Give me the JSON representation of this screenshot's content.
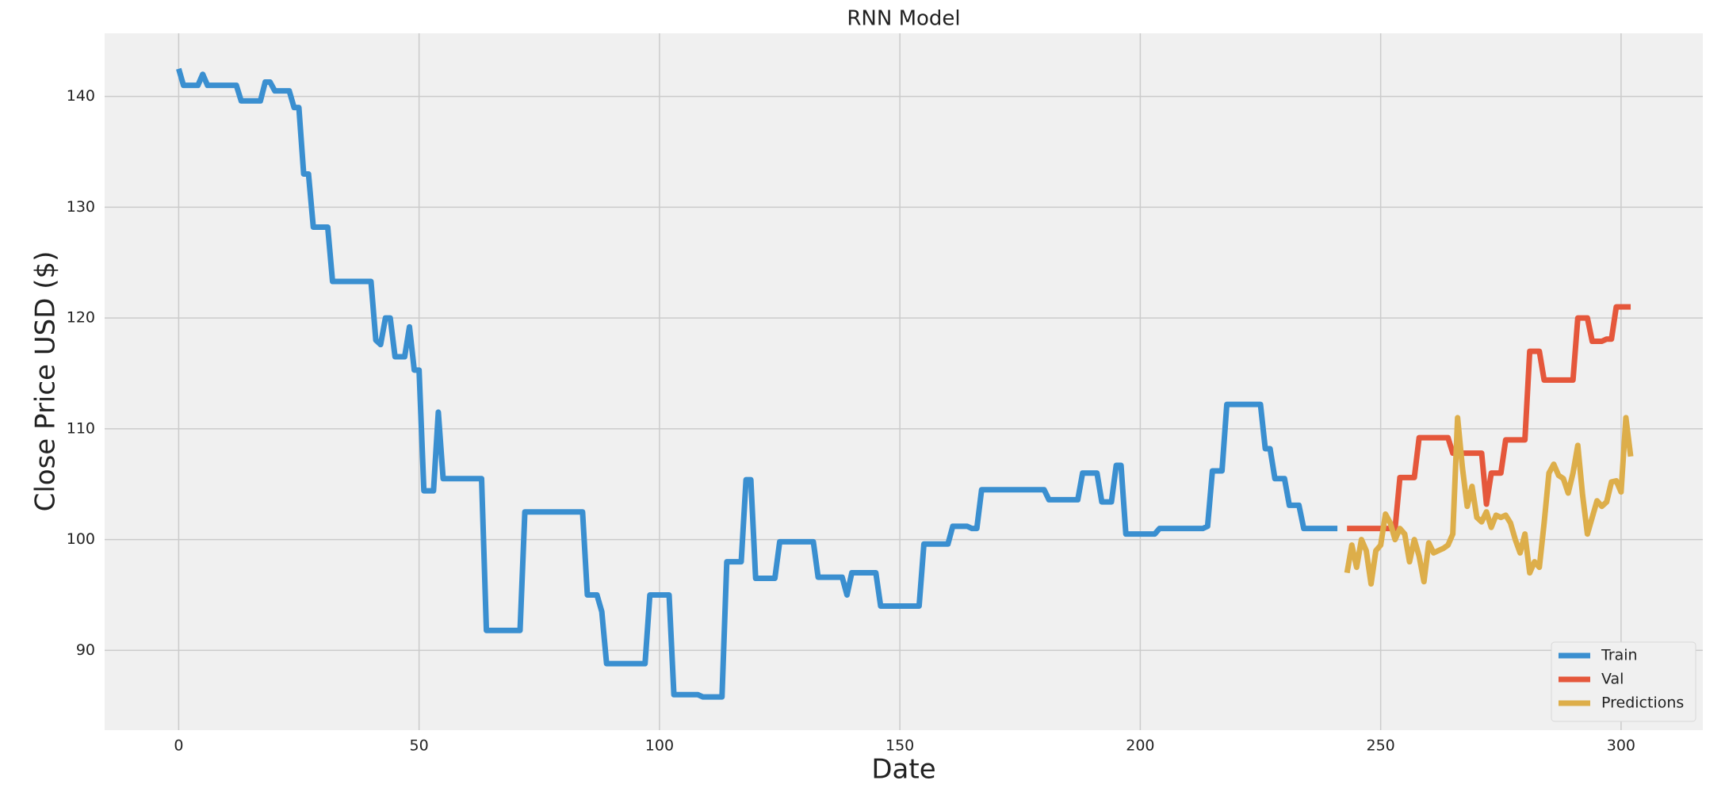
{
  "chart_data": {
    "type": "line",
    "title": "RNN Model",
    "x_label": "Date",
    "y_label": "Close Price USD ($)",
    "xlim": [
      -15.4,
      317
    ],
    "ylim": [
      82.8,
      145.7
    ],
    "xticks": [
      0,
      50,
      100,
      150,
      200,
      250,
      300
    ],
    "yticks": [
      90,
      100,
      110,
      120,
      130,
      140
    ],
    "grid": true,
    "legend": "lower right",
    "series": [
      {
        "name": "Train",
        "color": "#3a8fd0",
        "x": [
          0,
          1,
          2,
          3,
          4,
          5,
          6,
          7,
          8,
          9,
          10,
          11,
          12,
          13,
          14,
          15,
          16,
          17,
          18,
          19,
          20,
          21,
          22,
          23,
          24,
          25,
          26,
          27,
          28,
          29,
          30,
          31,
          32,
          33,
          34,
          35,
          36,
          37,
          38,
          39,
          40,
          41,
          42,
          43,
          44,
          45,
          46,
          47,
          48,
          49,
          50,
          51,
          52,
          53,
          54,
          55,
          56,
          57,
          58,
          59,
          60,
          61,
          62,
          63,
          64,
          65,
          66,
          67,
          68,
          69,
          70,
          71,
          72,
          73,
          74,
          75,
          76,
          77,
          78,
          79,
          80,
          81,
          82,
          83,
          84,
          85,
          86,
          87,
          88,
          89,
          90,
          91,
          92,
          93,
          94,
          95,
          96,
          97,
          98,
          99,
          100,
          101,
          102,
          103,
          104,
          105,
          106,
          107,
          108,
          109,
          110,
          111,
          112,
          113,
          114,
          115,
          116,
          117,
          118,
          119,
          120,
          121,
          122,
          123,
          124,
          125,
          126,
          127,
          128,
          129,
          130,
          131,
          132,
          133,
          134,
          135,
          136,
          137,
          138,
          139,
          140,
          141,
          142,
          143,
          144,
          145,
          146,
          147,
          148,
          149,
          150,
          151,
          152,
          153,
          154,
          155,
          156,
          157,
          158,
          159,
          160,
          161,
          162,
          163,
          164,
          165,
          166,
          167,
          168,
          169,
          170,
          171,
          172,
          173,
          174,
          175,
          176,
          177,
          178,
          179,
          180,
          181,
          182,
          183,
          184,
          185,
          186,
          187,
          188,
          189,
          190,
          191,
          192,
          193,
          194,
          195,
          196,
          197,
          198,
          199,
          200,
          201,
          202,
          203,
          204,
          205,
          206,
          207,
          208,
          209,
          210,
          211,
          212,
          213,
          214,
          215,
          216,
          217,
          218,
          219,
          220,
          221,
          222,
          223,
          224,
          225,
          226,
          227,
          228,
          229,
          230,
          231,
          232,
          233,
          234,
          235,
          236,
          237,
          238,
          239,
          240,
          241
        ],
        "values": [
          142.5,
          141,
          141,
          141,
          141,
          142,
          141,
          141,
          141,
          141,
          141,
          141,
          141,
          139.6,
          139.6,
          139.6,
          139.6,
          139.6,
          141.3,
          141.3,
          140.5,
          140.5,
          140.5,
          140.5,
          139,
          139,
          133,
          133,
          128.2,
          128.2,
          128.2,
          128.2,
          123.3,
          123.3,
          123.3,
          123.3,
          123.3,
          123.3,
          123.3,
          123.3,
          123.3,
          118,
          117.6,
          120,
          120,
          116.5,
          116.5,
          116.5,
          119.2,
          115.3,
          115.3,
          104.4,
          104.4,
          104.4,
          111.5,
          105.5,
          105.5,
          105.5,
          105.5,
          105.5,
          105.5,
          105.5,
          105.5,
          105.5,
          91.8,
          91.8,
          91.8,
          91.8,
          91.8,
          91.8,
          91.8,
          91.8,
          102.5,
          102.5,
          102.5,
          102.5,
          102.5,
          102.5,
          102.5,
          102.5,
          102.5,
          102.5,
          102.5,
          102.5,
          102.5,
          95,
          95,
          95,
          93.5,
          88.8,
          88.8,
          88.8,
          88.8,
          88.8,
          88.8,
          88.8,
          88.8,
          88.8,
          95,
          95,
          95,
          95,
          95,
          86,
          86,
          86,
          86,
          86,
          86,
          85.8,
          85.8,
          85.8,
          85.8,
          85.8,
          98,
          98,
          98,
          98,
          105.4,
          105.4,
          96.5,
          96.5,
          96.5,
          96.5,
          96.5,
          99.8,
          99.8,
          99.8,
          99.8,
          99.8,
          99.8,
          99.8,
          99.8,
          96.6,
          96.6,
          96.6,
          96.6,
          96.6,
          96.6,
          95,
          97,
          97,
          97,
          97,
          97,
          97,
          94,
          94,
          94,
          94,
          94,
          94,
          94,
          94,
          94,
          99.6,
          99.6,
          99.6,
          99.6,
          99.6,
          99.6,
          101.2,
          101.2,
          101.2,
          101.2,
          101,
          101,
          104.5,
          104.5,
          104.5,
          104.5,
          104.5,
          104.5,
          104.5,
          104.5,
          104.5,
          104.5,
          104.5,
          104.5,
          104.5,
          104.5,
          103.6,
          103.6,
          103.6,
          103.6,
          103.6,
          103.6,
          103.6,
          106,
          106,
          106,
          106,
          103.4,
          103.4,
          103.4,
          106.7,
          106.7,
          100.5,
          100.5,
          100.5,
          100.5,
          100.5,
          100.5,
          100.5,
          101,
          101,
          101,
          101,
          101,
          101,
          101,
          101,
          101,
          101,
          101.2,
          106.2,
          106.2,
          106.2,
          112.2,
          112.2,
          112.2,
          112.2,
          112.2,
          112.2,
          112.2,
          112.2,
          108.2,
          108.2,
          105.5,
          105.5,
          105.5,
          103.1,
          103.1,
          103.1,
          101,
          101,
          101,
          101,
          101,
          101,
          101,
          101
        ]
      },
      {
        "name": "Val",
        "color": "#e5573b",
        "x": [
          243,
          244,
          245,
          246,
          247,
          248,
          249,
          250,
          251,
          252,
          253,
          254,
          255,
          256,
          257,
          258,
          259,
          260,
          261,
          262,
          263,
          264,
          265,
          266,
          267,
          268,
          269,
          270,
          271,
          272,
          273,
          274,
          275,
          276,
          277,
          278,
          279,
          280,
          281,
          282,
          283,
          284,
          285,
          286,
          287,
          288,
          289,
          290,
          291,
          292,
          293,
          294,
          295,
          296,
          297,
          298,
          299,
          300,
          301,
          302
        ],
        "values": [
          101,
          101,
          101,
          101,
          101,
          101,
          101,
          101,
          101,
          101,
          101,
          105.6,
          105.6,
          105.6,
          105.6,
          109.2,
          109.2,
          109.2,
          109.2,
          109.2,
          109.2,
          109.2,
          107.8,
          107.8,
          107.8,
          107.8,
          107.8,
          107.8,
          107.8,
          103.2,
          106,
          106,
          106,
          109,
          109,
          109,
          109,
          109,
          117,
          117,
          117,
          114.4,
          114.4,
          114.4,
          114.4,
          114.4,
          114.4,
          114.4,
          120,
          120,
          120,
          117.9,
          117.9,
          117.9,
          118.1,
          118.1,
          121,
          121,
          121,
          121
        ]
      },
      {
        "name": "Predictions",
        "color": "#ddae4a",
        "x": [
          243,
          244,
          245,
          246,
          247,
          248,
          249,
          250,
          251,
          252,
          253,
          254,
          255,
          256,
          257,
          258,
          259,
          260,
          261,
          262,
          263,
          264,
          265,
          266,
          267,
          268,
          269,
          270,
          271,
          272,
          273,
          274,
          275,
          276,
          277,
          278,
          279,
          280,
          281,
          282,
          283,
          284,
          285,
          286,
          287,
          288,
          289,
          290,
          291,
          292,
          293,
          294,
          295,
          296,
          297,
          298,
          299,
          300,
          301,
          302
        ],
        "values": [
          97,
          99.5,
          97.5,
          100,
          99,
          96,
          99,
          99.5,
          102.3,
          101.5,
          100,
          101,
          100.5,
          98,
          100,
          98.5,
          96.2,
          99.7,
          98.8,
          99,
          99.2,
          99.5,
          100.5,
          111,
          106.5,
          103,
          104.8,
          102,
          101.6,
          102.5,
          101.1,
          102.2,
          102,
          102.2,
          101.5,
          100,
          98.8,
          100.5,
          97,
          98,
          97.5,
          101.5,
          106,
          106.8,
          105.8,
          105.5,
          104.2,
          106,
          108.5,
          104,
          100.5,
          102,
          103.5,
          103,
          103.4,
          105.2,
          105.3,
          104.3,
          111,
          107.5
        ]
      }
    ]
  }
}
